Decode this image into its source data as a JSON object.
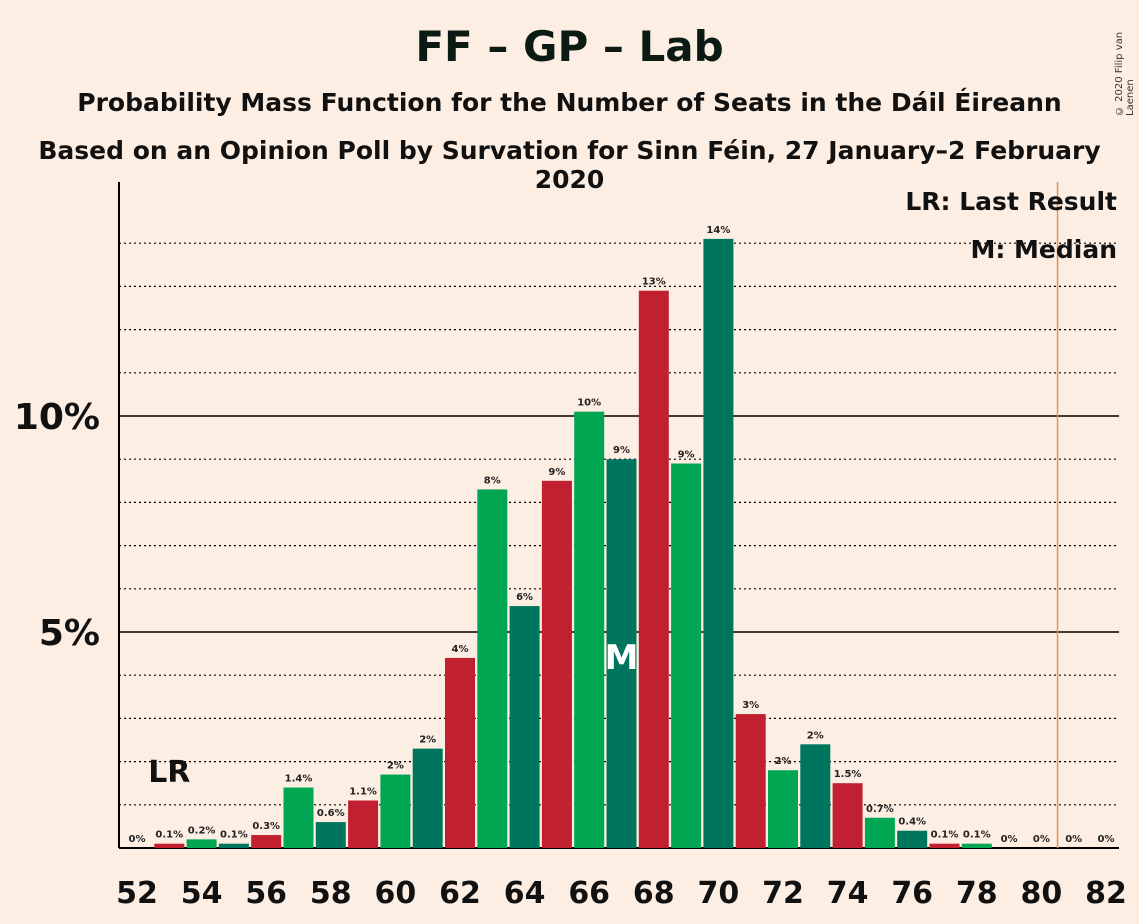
{
  "title": "FF – GP – Lab",
  "subtitle": "Probability Mass Function for the Number of Seats in the Dáil Éireann",
  "subtitle2": "Based on an Opinion Poll by Survation for Sinn Féin, 27 January–2 February 2020",
  "copyright": "© 2020 Filip van Laenen",
  "colors": {
    "background": "#FDEEE3",
    "ff_green": "#00A651",
    "ff_teal": "#00755E",
    "lab_red": "#C0202F",
    "last_result_line": "#E8904A"
  },
  "chart_data": {
    "type": "bar",
    "xlabel": "",
    "ylabel": "",
    "x": [
      52,
      53,
      54,
      55,
      56,
      57,
      58,
      59,
      60,
      61,
      62,
      63,
      64,
      65,
      66,
      67,
      68,
      69,
      70,
      71,
      72,
      73,
      74,
      75,
      76,
      77,
      78,
      79,
      80,
      81,
      82
    ],
    "values": [
      0,
      0.1,
      0.2,
      0.1,
      0.3,
      1.4,
      0.6,
      1.1,
      1.7,
      2.3,
      4.4,
      8.3,
      5.6,
      8.5,
      10.1,
      9.0,
      12.9,
      8.9,
      14.1,
      3.1,
      1.8,
      2.4,
      1.5,
      0.7,
      0.4,
      0.1,
      0.1,
      0,
      0,
      0,
      0
    ],
    "labels": [
      "0%",
      "0.1%",
      "0.2%",
      "0.1%",
      "0.3%",
      "1.4%",
      "0.6%",
      "1.1%",
      "2%",
      "2%",
      "4%",
      "8%",
      "6%",
      "9%",
      "10%",
      "9%",
      "13%",
      "9%",
      "14%",
      "3%",
      "2%",
      "2%",
      "1.5%",
      "0.7%",
      "0.4%",
      "0.1%",
      "0.1%",
      "0%",
      "0%",
      "0%",
      "0%"
    ],
    "bar_colors": [
      "green",
      "lab_red",
      "ff_green",
      "ff_teal",
      "lab_red",
      "ff_green",
      "ff_teal",
      "lab_red",
      "ff_green",
      "ff_teal",
      "lab_red",
      "ff_green",
      "ff_teal",
      "lab_red",
      "ff_green",
      "ff_teal",
      "lab_red",
      "ff_green",
      "ff_teal",
      "lab_red",
      "ff_green",
      "ff_teal",
      "lab_red",
      "ff_green",
      "ff_teal",
      "lab_red",
      "ff_green",
      "ff_teal",
      "lab_red",
      "ff_green",
      "ff_teal"
    ],
    "x_tick_labels": [
      "52",
      "54",
      "56",
      "58",
      "60",
      "62",
      "64",
      "66",
      "68",
      "70",
      "72",
      "74",
      "76",
      "78",
      "80",
      "82"
    ],
    "y_tick_labels": [
      {
        "value": 5,
        "label": "5%"
      },
      {
        "value": 10,
        "label": "10%"
      }
    ],
    "ylim": [
      0,
      15.3
    ],
    "grid": "dotted every 1%, solid at 5% and 10%",
    "median_seat": 67,
    "median_marker": "M",
    "last_result_seat": 53,
    "last_result_marker": "LR",
    "majority_line_x": 80.5,
    "legend": {
      "placement": "top-right",
      "items": [
        "LR: Last Result",
        "M: Median"
      ]
    }
  }
}
